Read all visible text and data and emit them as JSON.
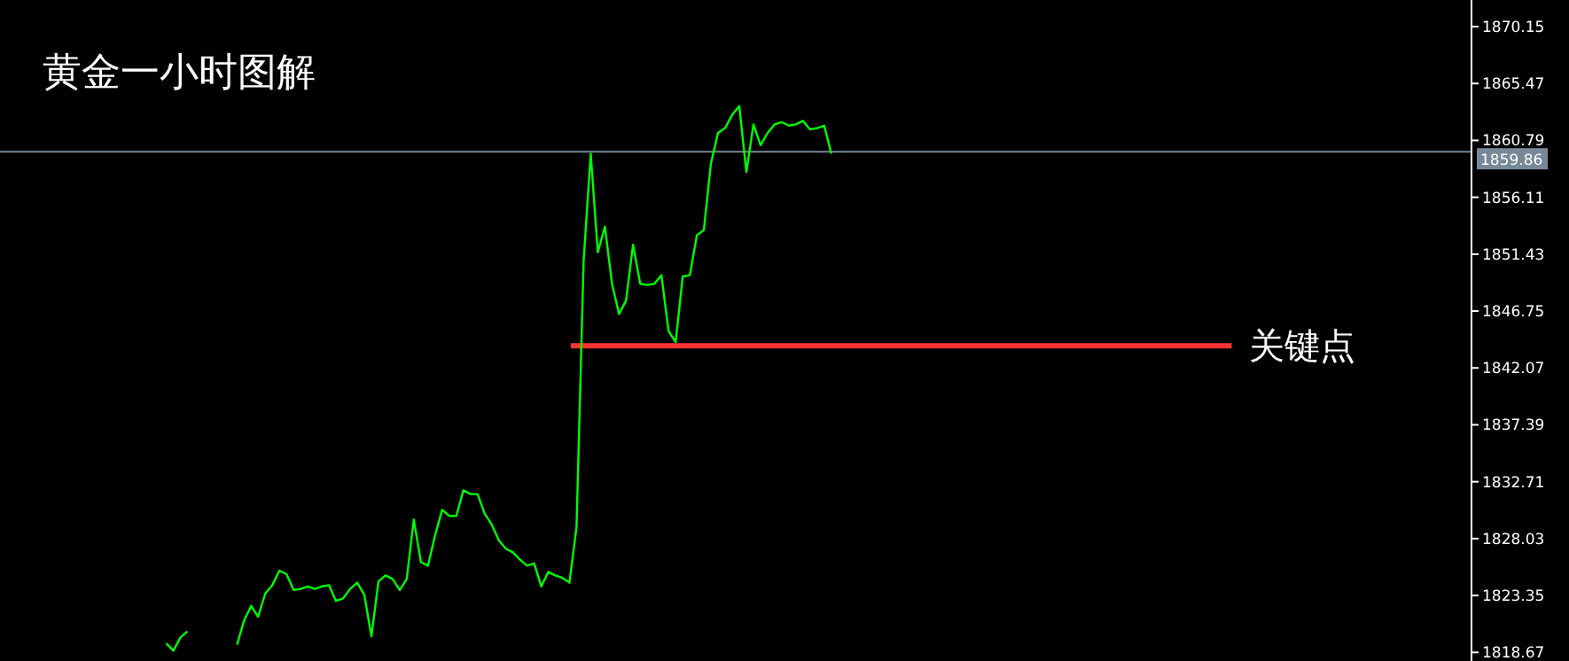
{
  "chart_data": {
    "type": "line",
    "title": "黄金一小时图解",
    "categories": [
      null,
      null,
      null,
      null,
      null,
      null,
      null,
      null,
      null,
      null,
      null,
      null,
      null,
      null,
      null,
      null,
      null,
      null,
      null,
      null,
      null,
      null,
      null,
      null,
      null,
      null,
      null,
      null,
      null,
      null,
      null,
      null,
      null,
      null,
      null,
      null,
      null,
      null,
      null,
      null,
      null,
      null,
      null,
      null,
      null,
      null,
      null,
      null,
      null,
      null,
      null,
      null,
      null,
      null,
      null,
      null,
      null,
      null,
      null,
      null,
      null,
      null,
      null,
      null,
      null,
      null,
      null,
      null,
      null,
      null,
      null,
      null,
      null,
      null,
      null,
      null,
      null,
      null,
      null,
      null,
      null,
      null,
      null,
      null,
      null,
      null,
      null,
      null,
      null,
      null,
      null,
      null,
      null,
      null,
      null,
      null,
      null,
      null,
      null,
      null,
      null,
      null,
      null,
      null,
      null,
      null,
      null,
      null,
      null,
      null,
      null,
      null,
      null,
      null,
      null,
      null,
      null,
      null,
      null,
      null,
      null,
      null,
      null,
      null,
      null,
      null,
      null,
      null,
      null,
      null,
      null,
      null,
      null,
      null,
      null,
      null,
      null,
      null,
      null,
      null,
      null,
      null,
      null,
      null,
      null,
      null,
      null,
      null,
      null,
      null,
      null,
      null,
      null,
      null,
      null,
      null,
      null,
      null,
      null,
      null,
      null,
      null,
      null,
      null,
      null,
      null,
      null,
      null,
      null,
      null,
      null,
      null,
      null,
      null,
      null,
      null,
      null,
      null,
      null,
      null,
      null,
      null,
      null,
      null,
      null,
      null,
      null,
      null,
      null,
      null,
      null,
      null,
      null,
      null,
      null,
      null,
      null,
      null,
      null,
      null,
      null,
      null,
      null,
      null,
      null,
      null,
      null,
      null
    ],
    "series": [
      {
        "color": "#00ff00",
        "values": [
          null,
          null,
          null,
          null,
          null,
          null,
          null,
          null,
          null,
          null,
          null,
          null,
          null,
          null,
          null,
          null,
          null,
          null,
          null,
          null,
          null,
          null,
          null,
          1819.4,
          1818.8,
          1819.9,
          1820.4,
          null,
          null,
          null,
          null,
          null,
          null,
          1819.3,
          1821.3,
          1822.5,
          1821.6,
          1823.5,
          1824.2,
          1825.4,
          1825.1,
          1823.8,
          1823.9,
          1824.1,
          1823.9,
          1824.1,
          1824.2,
          1822.9,
          1823.1,
          1823.9,
          1824.4,
          1823.4,
          1820.0,
          1824.5,
          1825.0,
          1824.7,
          1823.8,
          1824.7,
          1829.6,
          1826.1,
          1825.8,
          1828.3,
          1830.4,
          1829.9,
          1829.9,
          1832.0,
          1831.7,
          1831.7,
          1830.1,
          1829.2,
          1827.9,
          1827.2,
          1826.9,
          1826.3,
          1825.8,
          1826.0,
          1824.1,
          1825.3,
          1825.0,
          1824.8,
          1824.4,
          1829.0,
          1850.9,
          1859.7,
          1851.6,
          1853.7,
          1849.0,
          1846.5,
          1847.6,
          1852.2,
          1849.0,
          1848.9,
          1849.0,
          1849.7,
          1845.1,
          1844.2,
          1849.6,
          1849.7,
          1853.0,
          1853.4,
          1858.9,
          1861.4,
          1861.8,
          1862.9,
          1863.6,
          1858.2,
          1862.1,
          1860.4,
          1861.4,
          1862.1,
          1862.3,
          1862.0,
          1862.1,
          1862.4,
          1861.7,
          1861.8,
          1862.0,
          1859.7,
          null,
          null,
          null,
          null,
          null,
          null,
          null,
          null,
          null,
          null,
          null,
          null,
          null,
          null,
          null,
          null,
          null,
          null,
          null,
          null,
          null,
          null,
          null,
          null,
          null,
          null,
          null,
          null,
          null,
          null,
          null,
          null,
          null,
          null,
          null,
          null,
          null,
          null,
          null,
          null,
          null,
          null,
          null,
          null,
          null,
          null,
          null,
          null,
          null,
          null,
          null,
          null,
          null,
          null,
          null,
          null,
          null,
          null,
          null,
          null,
          null,
          null,
          null,
          null,
          null,
          null,
          null,
          null,
          null,
          null,
          null,
          null,
          null,
          null,
          null,
          null,
          null,
          null,
          null,
          null,
          null,
          null,
          null,
          null,
          null,
          null,
          null,
          null,
          null,
          null
        ]
      }
    ],
    "ylim": [
      1817.96,
      1872.34
    ],
    "yticks": [
      1870.15,
      1865.47,
      1860.79,
      1856.11,
      1851.43,
      1846.75,
      1842.07,
      1837.39,
      1832.71,
      1828.03,
      1823.35,
      1818.67
    ],
    "ref_lines": [
      {
        "axis": "y",
        "value": 1859.86,
        "label": "1859.86",
        "color": "#778899"
      },
      {
        "axis": "y",
        "value": 1843.9,
        "label": "关键点",
        "color": "#ff3333"
      }
    ],
    "grid": false
  }
}
